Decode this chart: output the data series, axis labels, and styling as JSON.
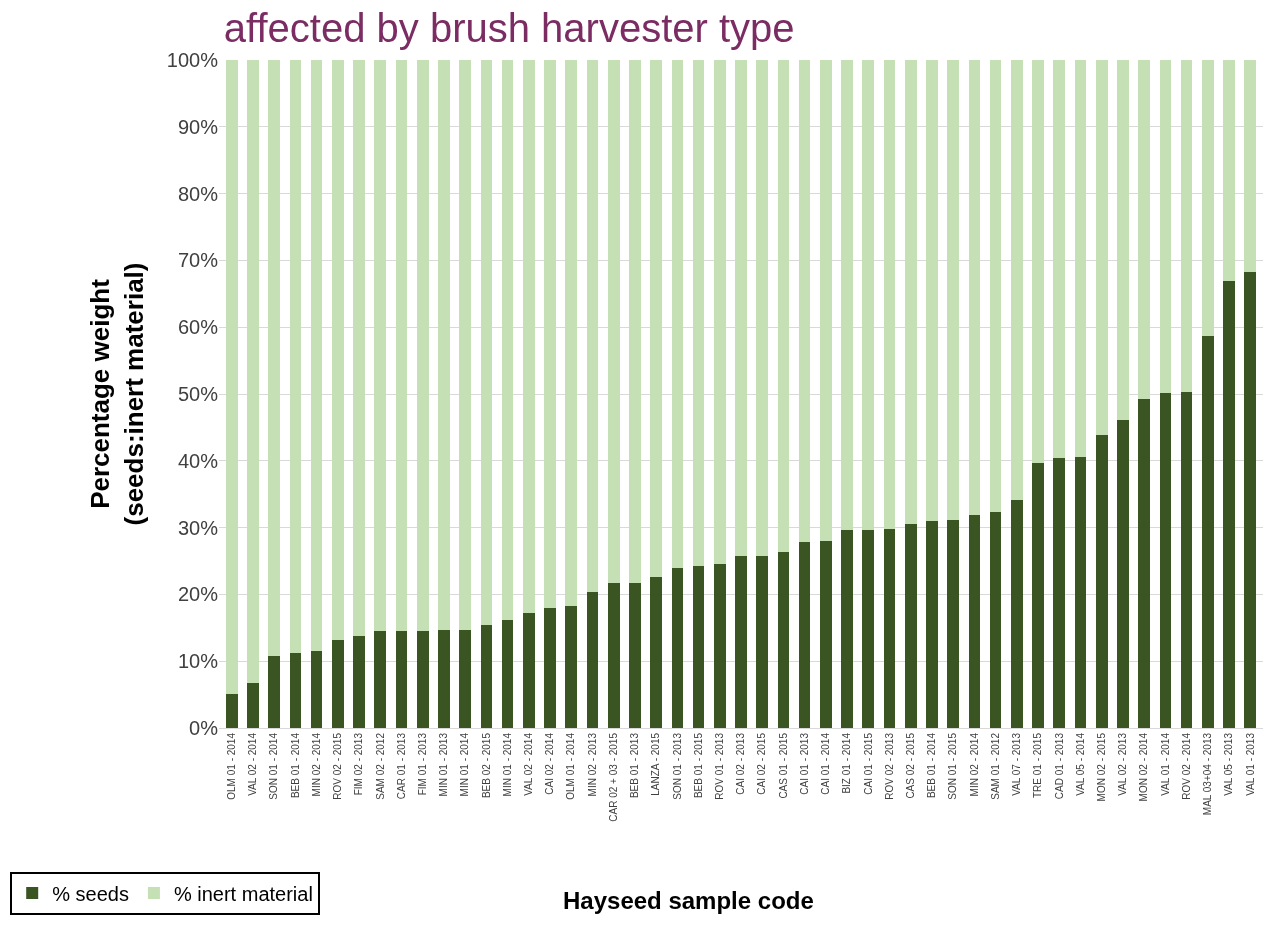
{
  "chart_data": {
    "type": "bar",
    "stacked": true,
    "title": "affected by brush harvester type",
    "xlabel": "Hayseed sample code",
    "ylabel": "Percentage weight\n(seeds:inert material)",
    "categories": [
      "OLM 01 - 2014",
      "VAL 02 - 2014",
      "SON 01 - 2014",
      "BEB 01 - 2014",
      "MIN 02 - 2014",
      "ROV 02 - 2015",
      "FIM 02 - 2013",
      "SAM 02 - 2012",
      "CAR 01 - 2013",
      "FIM 01 - 2013",
      "MIN 01 - 2013",
      "MIN 01 - 2014",
      "BEB 02 - 2015",
      "MIN 01 - 2014",
      "VAL 02 - 2014",
      "CAI 02 - 2014",
      "OLM 01 - 2014",
      "MIN 02 - 2013",
      "CAR 02 + 03 - 2015",
      "BEB 01 - 2013",
      "LANZA - 2015",
      "SON 01 - 2013",
      "BEB 01 - 2015",
      "ROV 01 - 2013",
      "CAI 02 - 2013",
      "CAI 02 - 2015",
      "CAS 01 - 2015",
      "CAI 01 - 2013",
      "CAI 01 - 2014",
      "BIZ 01 - 2014",
      "CAI 01 - 2015",
      "ROV 02 - 2013",
      "CAS 02 - 2015",
      "BEB 01 - 2014",
      "SON 01 - 2015",
      "MIN 02 - 2014",
      "SAM 01 - 2012",
      "VAL 07 - 2013",
      "TRE 01 - 2015",
      "CAD 01 - 2013",
      "VAL 05 - 2014",
      "MON 02 - 2015",
      "VAL 02 - 2013",
      "MON 02 - 2014",
      "VAL 01 - 2014",
      "ROV 02 - 2014",
      "MAL 03+04 - 2013",
      "VAL 05 - 2013",
      "VAL 01 - 2013"
    ],
    "series": [
      {
        "name": "% seeds",
        "color": "#3a5422",
        "values": [
          5.1,
          6.7,
          10.8,
          11.2,
          11.5,
          13.1,
          13.7,
          14.5,
          14.5,
          14.5,
          14.7,
          14.7,
          15.4,
          16.1,
          17.2,
          17.9,
          18.3,
          20.3,
          21.7,
          21.7,
          22.6,
          23.9,
          24.2,
          24.6,
          25.8,
          25.8,
          26.4,
          27.8,
          28.0,
          29.6,
          29.6,
          29.8,
          30.5,
          31.0,
          31.2,
          31.9,
          32.3,
          34.1,
          39.7,
          40.4,
          40.6,
          43.8,
          46.1,
          49.3,
          50.1,
          50.3,
          58.7,
          66.9,
          68.2
        ]
      },
      {
        "name": "% inert material",
        "color": "#c5e0b4",
        "values": [
          94.9,
          93.3,
          89.2,
          88.8,
          88.5,
          86.9,
          86.3,
          85.5,
          85.5,
          85.5,
          85.3,
          85.3,
          84.6,
          83.9,
          82.8,
          82.1,
          81.7,
          79.7,
          78.3,
          78.3,
          77.4,
          76.1,
          75.8,
          75.4,
          74.2,
          74.2,
          73.6,
          72.2,
          72.0,
          70.4,
          70.4,
          70.2,
          69.5,
          69.0,
          68.8,
          68.1,
          67.7,
          65.9,
          60.3,
          59.6,
          59.4,
          56.2,
          53.9,
          50.7,
          49.9,
          49.7,
          41.3,
          33.1,
          31.8
        ]
      }
    ],
    "ylim": [
      0,
      100
    ],
    "yticks": [
      {
        "value": 0,
        "label": "0%"
      },
      {
        "value": 10,
        "label": "10%"
      },
      {
        "value": 20,
        "label": "20%"
      },
      {
        "value": 30,
        "label": "30%"
      },
      {
        "value": 40,
        "label": "40%"
      },
      {
        "value": 50,
        "label": "50%"
      },
      {
        "value": 60,
        "label": "60%"
      },
      {
        "value": 70,
        "label": "70%"
      },
      {
        "value": 80,
        "label": "80%"
      },
      {
        "value": 90,
        "label": "90%"
      },
      {
        "value": 100,
        "label": "100%"
      }
    ],
    "grid": "y",
    "legend": "bottom left"
  }
}
